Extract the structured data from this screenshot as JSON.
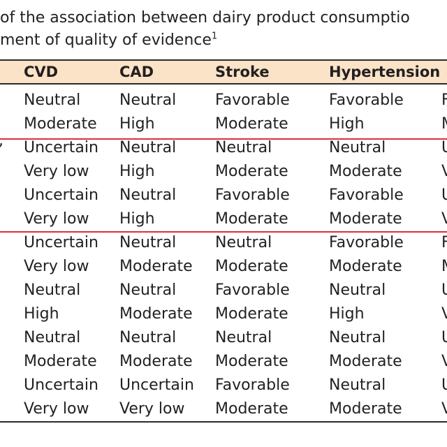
{
  "caption": {
    "line1": "of the association between dairy product consumptio",
    "line2": "ment of quality of evidence",
    "line2_sup": "1"
  },
  "table": {
    "headers": [
      "CVD",
      "CAD",
      "Stroke",
      "Hypertension",
      ""
    ],
    "rows": [
      [
        "Neutral",
        "Neutral",
        "Favorable",
        "Favorable",
        "F"
      ],
      [
        "Moderate",
        "High",
        "Moderate",
        "High",
        "M"
      ],
      [
        "Uncertain",
        "Neutral",
        "Neutral",
        "Neutral",
        "U"
      ],
      [
        "Very low",
        "High",
        "Moderate",
        "Moderate",
        "V"
      ],
      [
        "Uncertain",
        "Neutral",
        "Favorable",
        "Favorable",
        "U"
      ],
      [
        "Very low",
        "High",
        "Moderate",
        "Moderate",
        "V"
      ],
      [
        "Uncertain",
        "Neutral",
        "Neutral",
        "Favorable",
        "F"
      ],
      [
        "Very low",
        "Moderate",
        "Moderate",
        "Moderate",
        "M"
      ],
      [
        "Neutral",
        "Neutral",
        "Favorable",
        "Neutral",
        "U"
      ],
      [
        "High",
        "Moderate",
        "Moderate",
        "High",
        "V"
      ],
      [
        "Neutral",
        "Neutral",
        "Neutral",
        "Neutral",
        "U"
      ],
      [
        "Moderate",
        "Moderate",
        "Moderate",
        "Moderate",
        "V"
      ],
      [
        "Uncertain",
        "Uncertain",
        "Favorable",
        "Neutral",
        "U"
      ],
      [
        "Very low",
        "Very low",
        "Moderate",
        "Moderate",
        "V"
      ]
    ],
    "row_stub_marks": [
      "",
      "",
      ",",
      "",
      "",
      "",
      "",
      "",
      "",
      "",
      "",
      "",
      "",
      ""
    ]
  },
  "colors": {
    "header_background": "#fbe3c8",
    "highlight_rule": "#d9323c",
    "rule": "#2b2b2b",
    "text": "#231f20"
  }
}
